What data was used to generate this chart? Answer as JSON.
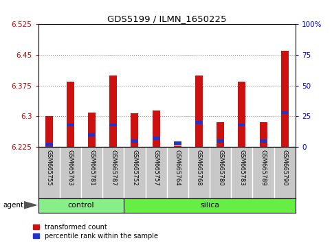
{
  "title": "GDS5199 / ILMN_1650225",
  "samples": [
    "GSM665755",
    "GSM665763",
    "GSM665781",
    "GSM665787",
    "GSM665752",
    "GSM665757",
    "GSM665764",
    "GSM665768",
    "GSM665780",
    "GSM665783",
    "GSM665789",
    "GSM665790"
  ],
  "n_control": 4,
  "transformed_count": [
    6.3,
    6.385,
    6.31,
    6.4,
    6.307,
    6.315,
    6.228,
    6.4,
    6.285,
    6.385,
    6.285,
    6.46
  ],
  "percentile_rank": [
    2,
    18,
    10,
    18,
    5,
    7,
    3,
    20,
    5,
    18,
    5,
    28
  ],
  "baseline": 6.225,
  "ylim_left": [
    6.225,
    6.525
  ],
  "ylim_right": [
    0,
    100
  ],
  "yticks_left": [
    6.225,
    6.3,
    6.375,
    6.45,
    6.525
  ],
  "ytick_labels_left": [
    "6.225",
    "6.3",
    "6.375",
    "6.45",
    "6.525"
  ],
  "yticks_right": [
    0,
    25,
    50,
    75,
    100
  ],
  "ytick_labels_right": [
    "0",
    "25",
    "50",
    "75",
    "100%"
  ],
  "bar_color_red": "#cc1111",
  "bar_color_blue": "#2233cc",
  "bg_plot": "#ffffff",
  "left_axis_color": "#cc0000",
  "right_axis_color": "#0000cc",
  "control_color": "#88ee88",
  "silica_color": "#66ee44",
  "legend_red": "transformed count",
  "legend_blue": "percentile rank within the sample",
  "bar_width": 0.35,
  "dotted_grid_color": "#888888"
}
